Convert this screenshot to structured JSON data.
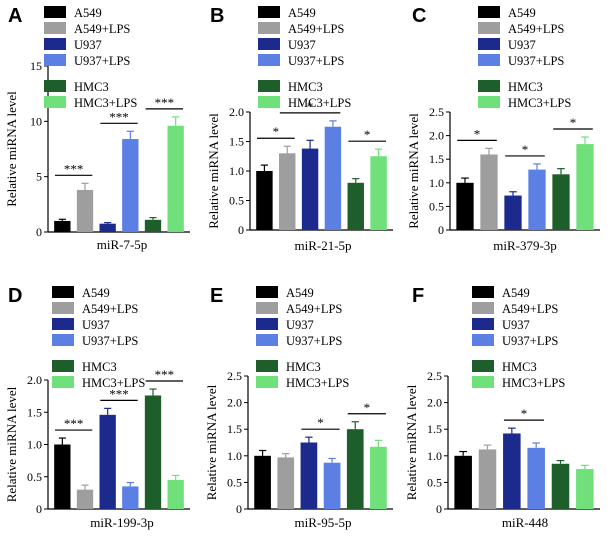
{
  "colors": {
    "A549": "#000000",
    "A549+LPS": "#9e9e9e",
    "U937": "#1b2a8c",
    "U937+LPS": "#5b7fe3",
    "HMC3": "#1e5e2a",
    "HMC3+LPS": "#6fe07a"
  },
  "chart_data": [
    {
      "type": "bar",
      "panel": "A",
      "title": "miR-7-5p",
      "xlabel": "miR-7-5p",
      "ylabel": "Relative miRNA level",
      "ylim": [
        0,
        15
      ],
      "yticks": [
        0,
        5,
        10,
        15
      ],
      "ytick_labels": [
        "0",
        "5",
        "10",
        "15"
      ],
      "categories": [
        "A549",
        "A549+LPS",
        "U937",
        "U937+LPS",
        "HMC3",
        "HMC3+LPS"
      ],
      "values": [
        1.0,
        3.8,
        0.75,
        8.4,
        1.1,
        9.6
      ],
      "errors": [
        0.15,
        0.6,
        0.1,
        0.7,
        0.2,
        0.8
      ],
      "legend": [
        "A549",
        "A549+LPS",
        "U937",
        "U937+LPS",
        "HMC3",
        "HMC3+LPS"
      ],
      "significance": [
        {
          "from": 0,
          "to": 1,
          "label": "***"
        },
        {
          "from": 2,
          "to": 3,
          "label": "***"
        },
        {
          "from": 4,
          "to": 5,
          "label": "***"
        }
      ]
    },
    {
      "type": "bar",
      "panel": "B",
      "title": "miR-21-5p",
      "xlabel": "miR-21-5p",
      "ylabel": "Relative miRNA level",
      "ylim": [
        0,
        2.0
      ],
      "yticks": [
        0,
        0.5,
        1.0,
        1.5,
        2.0
      ],
      "ytick_labels": [
        "0",
        "0.5",
        "1.0",
        "1.5",
        "2.0"
      ],
      "categories": [
        "A549",
        "A549+LPS",
        "U937",
        "U937+LPS",
        "HMC3",
        "HMC3+LPS"
      ],
      "values": [
        1.0,
        1.3,
        1.38,
        1.75,
        0.8,
        1.25
      ],
      "errors": [
        0.1,
        0.12,
        0.14,
        0.1,
        0.07,
        0.12
      ],
      "legend": [
        "A549",
        "A549+LPS",
        "U937",
        "U937+LPS",
        "HMC3",
        "HMC3+LPS"
      ],
      "significance": [
        {
          "from": 0,
          "to": 1,
          "label": "*"
        },
        {
          "from": 1,
          "to": 3,
          "label": "*"
        },
        {
          "from": 4,
          "to": 5,
          "label": "*"
        }
      ]
    },
    {
      "type": "bar",
      "panel": "C",
      "title": "miR-379-3p",
      "xlabel": "miR-379-3p",
      "ylabel": "Relative miRNA level",
      "ylim": [
        0,
        2.5
      ],
      "yticks": [
        0,
        0.5,
        1.0,
        1.5,
        2.0,
        2.5
      ],
      "ytick_labels": [
        "0",
        "0.5",
        "1.0",
        "1.5",
        "2.0",
        "2.5"
      ],
      "categories": [
        "A549",
        "A549+LPS",
        "U937",
        "U937+LPS",
        "HMC3",
        "HMC3+LPS"
      ],
      "values": [
        1.0,
        1.6,
        0.73,
        1.28,
        1.18,
        1.82
      ],
      "errors": [
        0.1,
        0.13,
        0.08,
        0.12,
        0.12,
        0.15
      ],
      "legend": [
        "A549",
        "A549+LPS",
        "U937",
        "U937+LPS",
        "HMC3",
        "HMC3+LPS"
      ],
      "significance": [
        {
          "from": 0,
          "to": 1,
          "label": "*"
        },
        {
          "from": 2,
          "to": 3,
          "label": "*"
        },
        {
          "from": 4,
          "to": 5,
          "label": "*"
        }
      ]
    },
    {
      "type": "bar",
      "panel": "D",
      "title": "miR-199-3p",
      "xlabel": "miR-199-3p",
      "ylabel": "Relative miRNA level",
      "ylim": [
        0,
        2.0
      ],
      "yticks": [
        0,
        0.5,
        1.0,
        1.5,
        2.0
      ],
      "ytick_labels": [
        "0",
        "0.5",
        "1.0",
        "1.5",
        "2.0"
      ],
      "categories": [
        "A549",
        "A549+LPS",
        "U937",
        "U937+LPS",
        "HMC3",
        "HMC3+LPS"
      ],
      "values": [
        1.0,
        0.3,
        1.46,
        0.35,
        1.76,
        0.45
      ],
      "errors": [
        0.1,
        0.07,
        0.1,
        0.06,
        0.1,
        0.07
      ],
      "legend": [
        "A549",
        "A549+LPS",
        "U937",
        "U937+LPS",
        "HMC3",
        "HMC3+LPS"
      ],
      "significance": [
        {
          "from": 0,
          "to": 1,
          "label": "***"
        },
        {
          "from": 2,
          "to": 3,
          "label": "***"
        },
        {
          "from": 4,
          "to": 5,
          "label": "***"
        }
      ]
    },
    {
      "type": "bar",
      "panel": "E",
      "title": "miR-95-5p",
      "xlabel": "miR-95-5p",
      "ylabel": "Relative miRNA level",
      "ylim": [
        0,
        2.5
      ],
      "yticks": [
        0,
        0.5,
        1.0,
        1.5,
        2.0,
        2.5
      ],
      "ytick_labels": [
        "0",
        "0.5",
        "1.0",
        "1.5",
        "2.0",
        "2.5"
      ],
      "categories": [
        "A549",
        "A549+LPS",
        "U937",
        "U937+LPS",
        "HMC3",
        "HMC3+LPS"
      ],
      "values": [
        1.0,
        0.97,
        1.25,
        0.87,
        1.5,
        1.17
      ],
      "errors": [
        0.1,
        0.07,
        0.1,
        0.08,
        0.14,
        0.12
      ],
      "legend": [
        "A549",
        "A549+LPS",
        "U937",
        "U937+LPS",
        "HMC3",
        "HMC3+LPS"
      ],
      "significance": [
        {
          "from": 2,
          "to": 3,
          "label": "*"
        },
        {
          "from": 4,
          "to": 5,
          "label": "*"
        }
      ]
    },
    {
      "type": "bar",
      "panel": "F",
      "title": "miR-448",
      "xlabel": "miR-448",
      "ylabel": "Relative miRNA level",
      "ylim": [
        0,
        2.5
      ],
      "yticks": [
        0,
        0.5,
        1.0,
        1.5,
        2.0,
        2.5
      ],
      "ytick_labels": [
        "0",
        "0.5",
        "1.0",
        "1.5",
        "2.0",
        "2.5"
      ],
      "categories": [
        "A549",
        "A549+LPS",
        "U937",
        "U937+LPS",
        "HMC3",
        "HMC3+LPS"
      ],
      "values": [
        1.0,
        1.12,
        1.42,
        1.15,
        0.85,
        0.75
      ],
      "errors": [
        0.08,
        0.08,
        0.1,
        0.09,
        0.06,
        0.07
      ],
      "legend": [
        "A549",
        "A549+LPS",
        "U937",
        "U937+LPS",
        "HMC3",
        "HMC3+LPS"
      ],
      "significance": [
        {
          "from": 2,
          "to": 3,
          "label": "*"
        }
      ]
    }
  ]
}
